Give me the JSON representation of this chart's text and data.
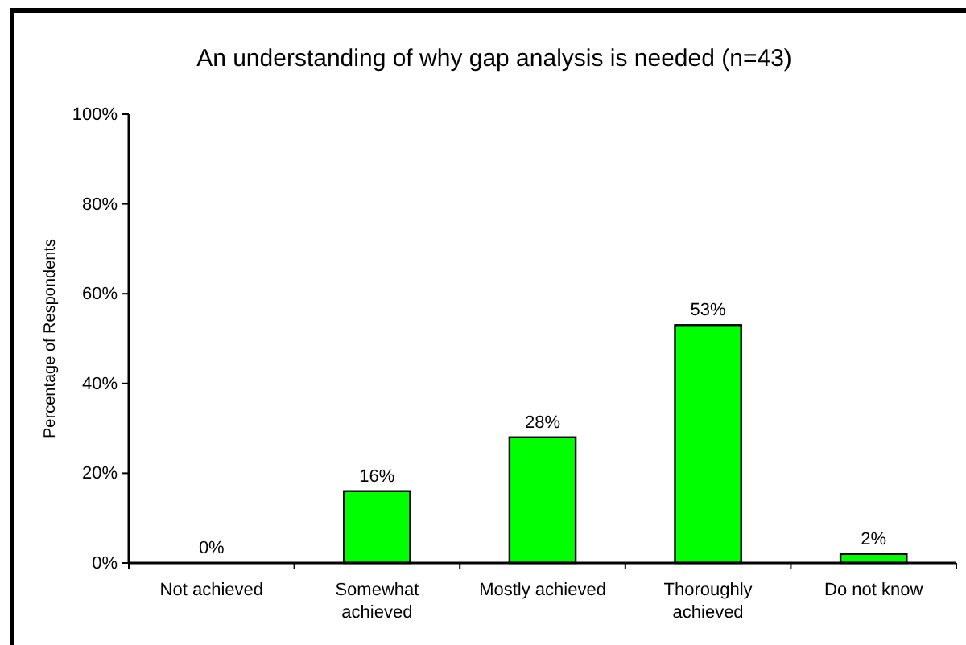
{
  "chart_data": {
    "type": "bar",
    "title": "An understanding of why gap analysis is needed (n=43)",
    "ylabel": "Percentage of Respondents",
    "categories": [
      "Not achieved",
      "Somewhat achieved",
      "Mostly achieved",
      "Thoroughly achieved",
      "Do not know"
    ],
    "values": [
      0,
      16,
      28,
      53,
      2
    ],
    "color": "#00ff00",
    "ylim": [
      0,
      100
    ],
    "yticks": [
      {
        "value": 0,
        "label": "0%"
      },
      {
        "value": 20,
        "label": "20%"
      },
      {
        "value": 40,
        "label": "40%"
      },
      {
        "value": 60,
        "label": "60%"
      },
      {
        "value": 80,
        "label": "80%"
      },
      {
        "value": 100,
        "label": "100%"
      }
    ],
    "data_labels": true,
    "value_labels": [
      "0%",
      "16%",
      "28%",
      "53%",
      "2%"
    ]
  }
}
